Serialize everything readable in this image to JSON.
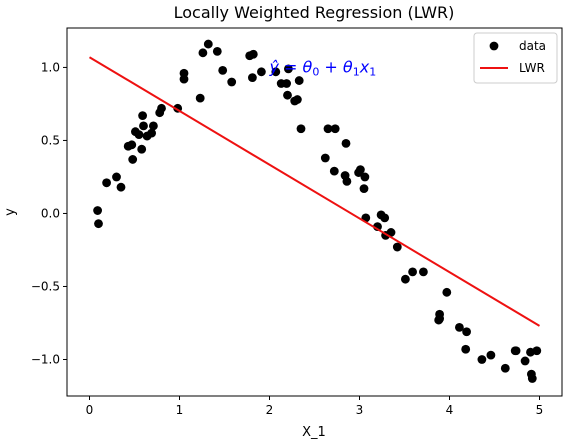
{
  "chart_data": {
    "type": "scatter",
    "title": "Locally Weighted Regression (LWR)",
    "xlabel": "X_1",
    "ylabel": "y",
    "xlim": [
      -0.25,
      5.25
    ],
    "ylim": [
      -1.25,
      1.27
    ],
    "xticks": [
      0,
      1,
      2,
      3,
      4,
      5
    ],
    "xtick_labels": [
      "0",
      "1",
      "2",
      "3",
      "4",
      "5"
    ],
    "yticks": [
      -1.0,
      -0.5,
      0.0,
      0.5,
      1.0
    ],
    "ytick_labels": [
      "−1.0",
      "−0.5",
      "0.0",
      "0.5",
      "1.0"
    ],
    "grid": false,
    "legend_position": "top-right",
    "annotation": {
      "x": 2.0,
      "y": 1.0,
      "color": "#0000ff",
      "parts": [
        {
          "t": "ŷ",
          "s": "n"
        },
        {
          "t": " = ",
          "s": "n"
        },
        {
          "t": "θ",
          "s": "n"
        },
        {
          "t": "0",
          "s": "sub"
        },
        {
          "t": " + ",
          "s": "n"
        },
        {
          "t": "θ",
          "s": "n"
        },
        {
          "t": "1",
          "s": "sub"
        },
        {
          "t": "x",
          "s": "n"
        },
        {
          "t": "1",
          "s": "sub"
        }
      ]
    },
    "series": [
      {
        "name": "data",
        "kind": "scatter",
        "color": "#000000",
        "points": [
          [
            0.09,
            0.02
          ],
          [
            0.1,
            -0.07
          ],
          [
            0.19,
            0.21
          ],
          [
            0.3,
            0.25
          ],
          [
            0.35,
            0.18
          ],
          [
            0.43,
            0.46
          ],
          [
            0.47,
            0.47
          ],
          [
            0.48,
            0.37
          ],
          [
            0.51,
            0.56
          ],
          [
            0.55,
            0.54
          ],
          [
            0.58,
            0.44
          ],
          [
            0.59,
            0.67
          ],
          [
            0.6,
            0.6
          ],
          [
            0.64,
            0.53
          ],
          [
            0.69,
            0.55
          ],
          [
            0.71,
            0.6
          ],
          [
            0.78,
            0.69
          ],
          [
            0.8,
            0.72
          ],
          [
            0.98,
            0.72
          ],
          [
            1.05,
            0.92
          ],
          [
            1.05,
            0.96
          ],
          [
            1.23,
            0.79
          ],
          [
            1.26,
            1.1
          ],
          [
            1.32,
            1.16
          ],
          [
            1.42,
            1.11
          ],
          [
            1.48,
            0.98
          ],
          [
            1.58,
            0.9
          ],
          [
            1.78,
            1.08
          ],
          [
            1.82,
            1.09
          ],
          [
            1.81,
            0.93
          ],
          [
            1.91,
            0.97
          ],
          [
            2.07,
            0.97
          ],
          [
            2.13,
            0.89
          ],
          [
            2.19,
            0.89
          ],
          [
            2.2,
            0.81
          ],
          [
            2.21,
            0.99
          ],
          [
            2.28,
            0.77
          ],
          [
            2.31,
            0.78
          ],
          [
            2.33,
            0.91
          ],
          [
            2.35,
            0.58
          ],
          [
            2.62,
            0.38
          ],
          [
            2.65,
            0.58
          ],
          [
            2.73,
            0.58
          ],
          [
            2.72,
            0.29
          ],
          [
            2.85,
            0.48
          ],
          [
            2.84,
            0.26
          ],
          [
            2.86,
            0.22
          ],
          [
            2.99,
            0.28
          ],
          [
            3.01,
            0.3
          ],
          [
            3.05,
            0.17
          ],
          [
            3.06,
            0.25
          ],
          [
            3.07,
            -0.03
          ],
          [
            3.2,
            -0.09
          ],
          [
            3.24,
            -0.01
          ],
          [
            3.28,
            -0.03
          ],
          [
            3.29,
            -0.15
          ],
          [
            3.35,
            -0.13
          ],
          [
            3.42,
            -0.23
          ],
          [
            3.51,
            -0.45
          ],
          [
            3.59,
            -0.4
          ],
          [
            3.71,
            -0.4
          ],
          [
            3.88,
            -0.73
          ],
          [
            3.89,
            -0.69
          ],
          [
            3.89,
            -0.72
          ],
          [
            3.97,
            -0.54
          ],
          [
            4.11,
            -0.78
          ],
          [
            4.18,
            -0.93
          ],
          [
            4.19,
            -0.81
          ],
          [
            4.36,
            -1.0
          ],
          [
            4.46,
            -0.97
          ],
          [
            4.62,
            -1.06
          ],
          [
            4.73,
            -0.94
          ],
          [
            4.74,
            -0.94
          ],
          [
            4.84,
            -1.01
          ],
          [
            4.9,
            -0.95
          ],
          [
            4.92,
            -1.13
          ],
          [
            4.91,
            -1.1
          ],
          [
            4.97,
            -0.94
          ]
        ]
      },
      {
        "name": "LWR",
        "kind": "line",
        "color": "#ee1111",
        "points": [
          [
            0,
            1.07
          ],
          [
            5,
            -0.77
          ]
        ]
      }
    ]
  }
}
